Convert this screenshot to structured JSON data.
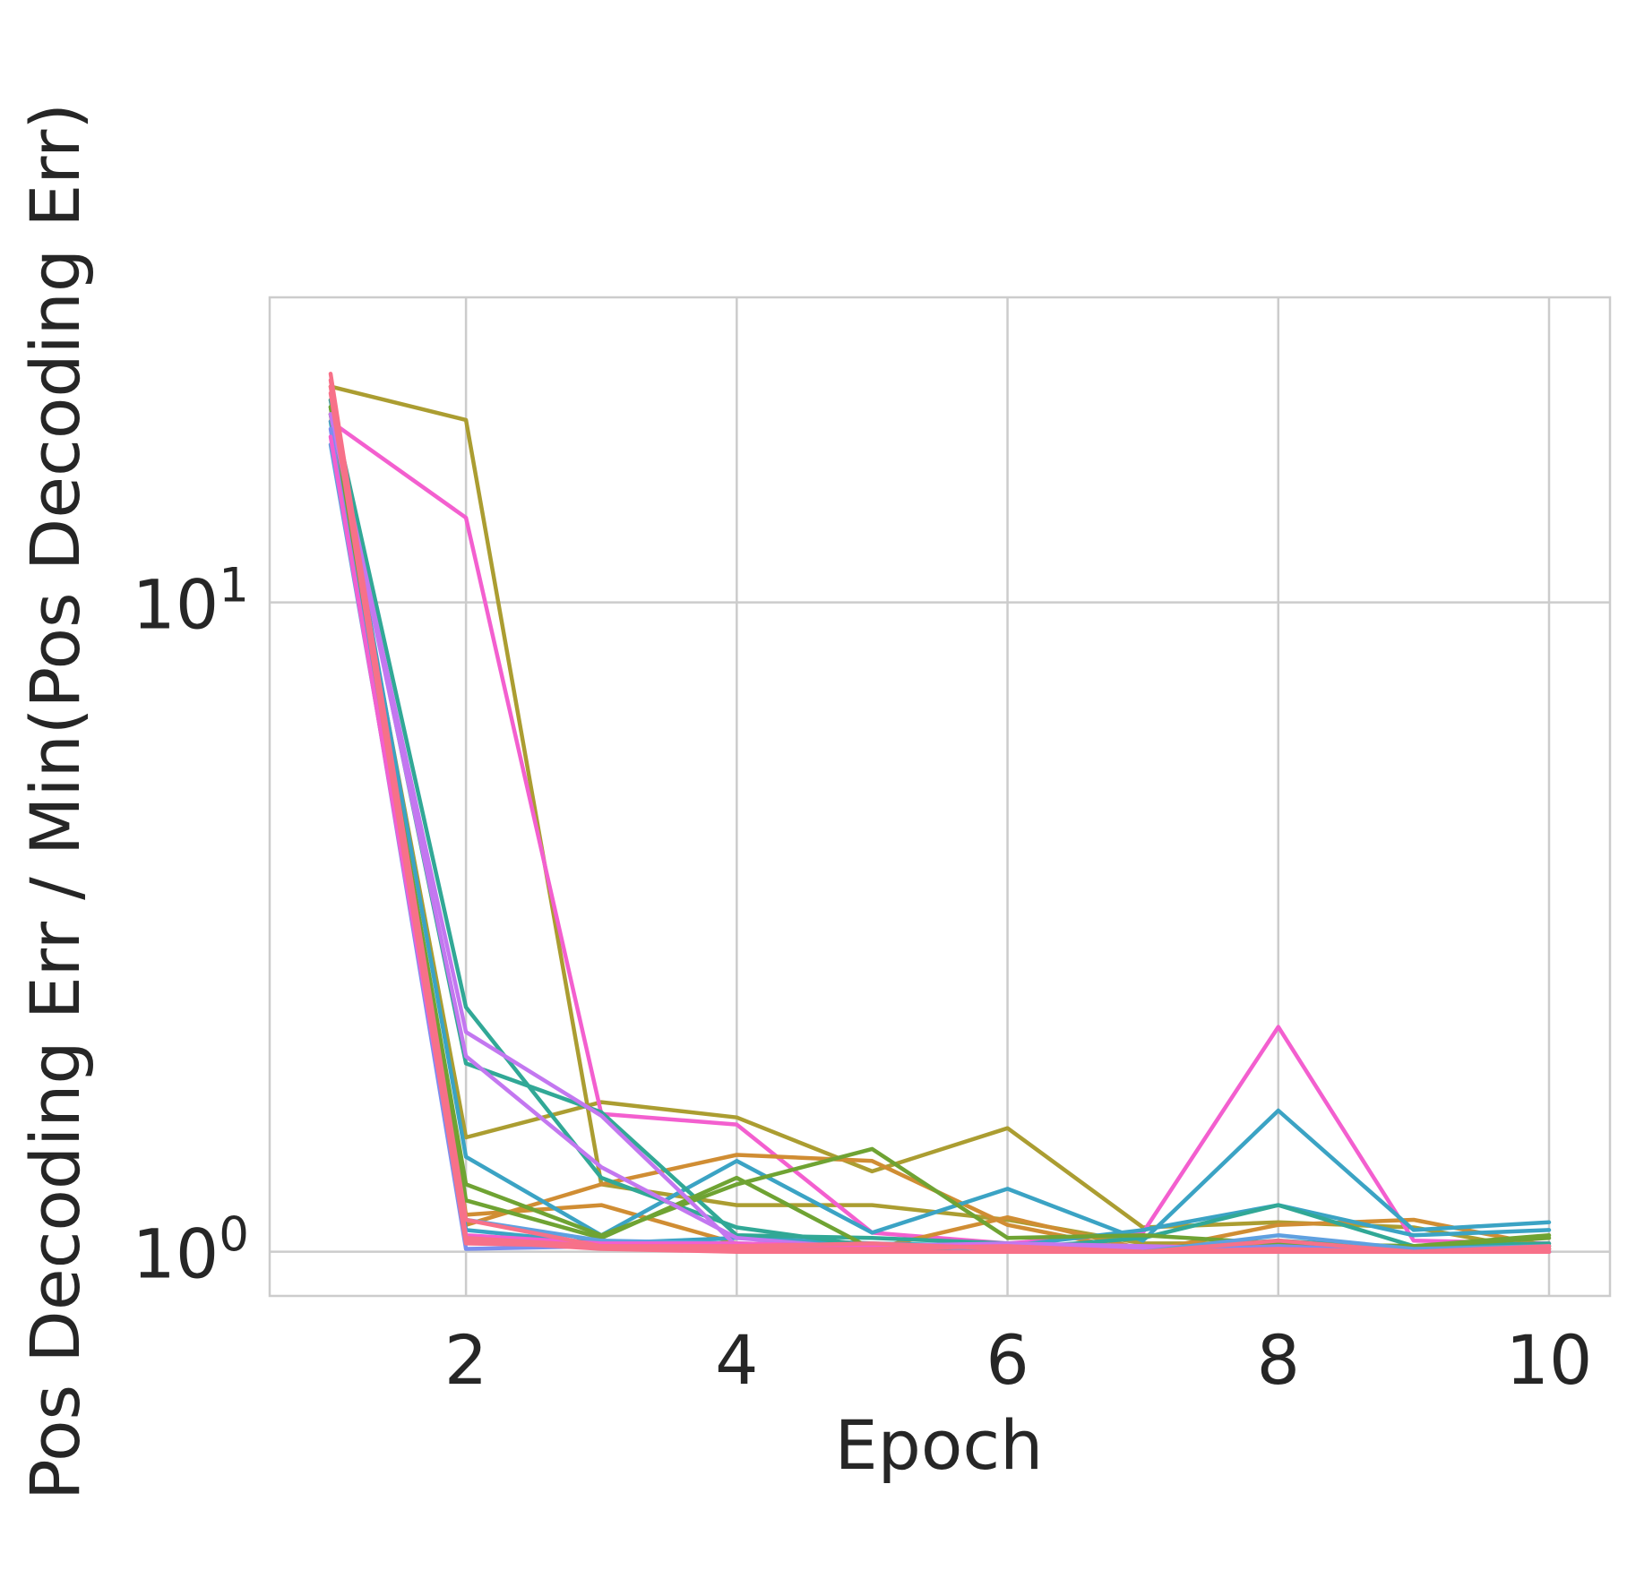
{
  "chart_data": {
    "type": "line",
    "title": "",
    "xlabel": "Epoch",
    "ylabel": "Pos Decoding Err / Min(Pos Decoding Err)",
    "yscale": "log",
    "xlim": [
      0.55,
      10.45
    ],
    "ylim": [
      0.855,
      29.5
    ],
    "xticks": [
      2,
      4,
      6,
      8,
      10
    ],
    "xtick_labels": [
      "2",
      "4",
      "6",
      "8",
      "10"
    ],
    "yticks": [
      1,
      10
    ],
    "ytick_labels": [
      {
        "base": "10",
        "exp": "0"
      },
      {
        "base": "10",
        "exp": "1"
      }
    ],
    "grid": true,
    "legend": "none",
    "x": [
      1,
      2,
      3,
      4,
      5,
      6,
      7,
      8,
      9,
      10
    ],
    "series": [
      {
        "color": "#ab9d31",
        "values": [
          21.5,
          19.1,
          1.27,
          1.18,
          1.18,
          1.12,
          1.03,
          1.03,
          1.02,
          1.02
        ]
      },
      {
        "color": "#ab9d31",
        "values": [
          19.5,
          1.5,
          1.7,
          1.61,
          1.33,
          1.55,
          1.09,
          1.11,
          1.09,
          1.0
        ]
      },
      {
        "color": "#f35fcf",
        "values": [
          19.0,
          13.5,
          1.63,
          1.57,
          1.07,
          1.03,
          1.07,
          2.22,
          1.04,
          1.03
        ]
      },
      {
        "color": "#d08d33",
        "values": [
          20.0,
          1.1,
          1.27,
          1.41,
          1.38,
          1.1,
          1.0,
          1.1,
          1.12,
          1.02
        ]
      },
      {
        "color": "#d08d33",
        "values": [
          19.5,
          1.14,
          1.18,
          1.03,
          1.01,
          1.13,
          1.01,
          1.03,
          1.0,
          1.01
        ]
      },
      {
        "color": "#3ba3c4",
        "values": [
          20.5,
          1.4,
          1.06,
          1.38,
          1.07,
          1.25,
          1.04,
          1.65,
          1.08,
          1.11
        ]
      },
      {
        "color": "#3ba3c4",
        "values": [
          19.0,
          1.08,
          1.03,
          1.05,
          1.03,
          1.02,
          1.08,
          1.18,
          1.06,
          1.08
        ]
      },
      {
        "color": "#31a896",
        "values": [
          20.5,
          2.38,
          1.3,
          1.09,
          1.02,
          1.01,
          1.05,
          1.18,
          1.02,
          1.03
        ]
      },
      {
        "color": "#31a896",
        "values": [
          20.0,
          1.95,
          1.64,
          1.06,
          1.05,
          1.03,
          1.01,
          1.04,
          1.01,
          1.01
        ]
      },
      {
        "color": "#6fa333",
        "values": [
          19.5,
          1.27,
          1.06,
          1.27,
          1.44,
          1.05,
          1.06,
          1.03,
          1.02,
          1.05
        ]
      },
      {
        "color": "#6fa333",
        "values": [
          20.0,
          1.2,
          1.05,
          1.3,
          1.01,
          1.01,
          1.01,
          1.0,
          1.02,
          1.06
        ]
      },
      {
        "color": "#c377f0",
        "values": [
          19.5,
          2.18,
          1.62,
          1.02,
          1.02,
          1.03,
          1.02,
          1.01,
          1.0,
          1.0
        ]
      },
      {
        "color": "#c377f0",
        "values": [
          19.5,
          2.0,
          1.35,
          1.05,
          1.01,
          1.02,
          1.01,
          1.0,
          1.0,
          1.0
        ]
      },
      {
        "color": "#7b8ff0",
        "values": [
          18.5,
          1.01,
          1.02,
          1.01,
          1.0,
          1.0,
          1.0,
          1.02,
          1.0,
          1.0
        ]
      },
      {
        "color": "#5fa0e0",
        "values": [
          17.5,
          1.12,
          1.04,
          1.03,
          1.02,
          1.01,
          1.0,
          1.06,
          1.01,
          1.02
        ]
      },
      {
        "color": "#f35fcf",
        "values": [
          18.0,
          1.06,
          1.03,
          1.03,
          1.02,
          1.02,
          1.0,
          1.01,
          1.0,
          1.0
        ]
      },
      {
        "color": "#f77189",
        "values": [
          22.5,
          1.05,
          1.02,
          1.01,
          1.01,
          1.02,
          1.0,
          1.01,
          1.0,
          1.02
        ]
      },
      {
        "color": "#f77189",
        "values": [
          22.0,
          1.12,
          1.02,
          1.02,
          1.03,
          1.01,
          1.0,
          1.04,
          1.0,
          1.01
        ]
      },
      {
        "color": "#f77189",
        "values": [
          21.5,
          1.04,
          1.01,
          1.0,
          1.0,
          1.0,
          1.0,
          1.0,
          1.0,
          1.0
        ]
      },
      {
        "color": "#f77189",
        "values": [
          21.0,
          1.03,
          1.02,
          1.01,
          1.0,
          1.0,
          1.0,
          1.0,
          1.0,
          1.01
        ]
      }
    ]
  }
}
